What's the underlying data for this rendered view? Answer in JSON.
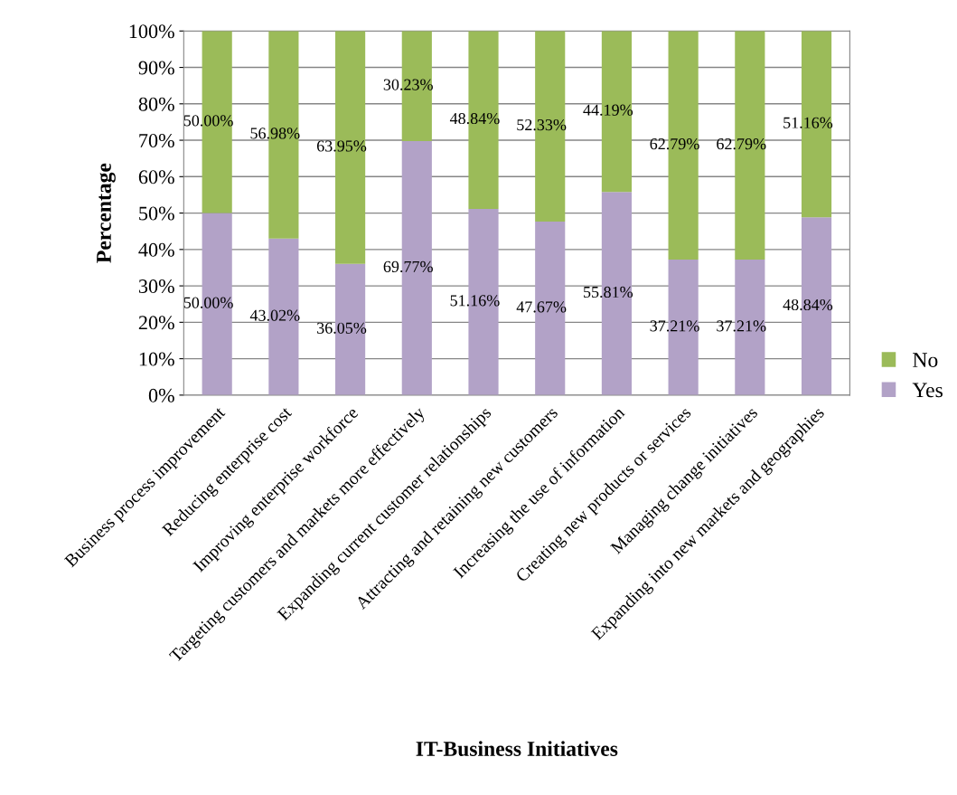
{
  "chart_data": {
    "type": "bar",
    "stacked": true,
    "xlabel": "IT-Business Initiatives",
    "ylabel": "Percentage",
    "categories": [
      "Business process improvement",
      "Reducing enterprise cost",
      "Improving enterprise workforce",
      "Targeting customers and markets more effectively",
      "Expanding current customer relationships",
      "Attracting and retaining new customers",
      "Increasing the use of information",
      "Creating new products or services",
      "Managing change initiatives",
      "Expanding into new markets and geographies"
    ],
    "series": [
      {
        "name": "Yes",
        "color": "#b2a2c7",
        "values": [
          50.0,
          43.02,
          36.05,
          69.77,
          51.16,
          47.67,
          55.81,
          37.21,
          37.21,
          48.84
        ],
        "value_labels": [
          "50.00%",
          "43.02%",
          "36.05%",
          "69.77%",
          "51.16%",
          "47.67%",
          "55.81%",
          "37.21%",
          "37.21%",
          "48.84%"
        ]
      },
      {
        "name": "No",
        "color": "#9bbb59",
        "values": [
          50.0,
          56.98,
          63.95,
          30.23,
          48.84,
          52.33,
          44.19,
          62.79,
          62.79,
          51.16
        ],
        "value_labels": [
          "50.00%",
          "56.98%",
          "63.95%",
          "30.23%",
          "48.84%",
          "52.33%",
          "44.19%",
          "62.79%",
          "62.79%",
          "51.16%"
        ]
      }
    ],
    "ylim": [
      0,
      100
    ],
    "yticks": [
      {
        "value": 0,
        "label": "0%"
      },
      {
        "value": 10,
        "label": "10%"
      },
      {
        "value": 20,
        "label": "20%"
      },
      {
        "value": 30,
        "label": "30%"
      },
      {
        "value": 40,
        "label": "40%"
      },
      {
        "value": 50,
        "label": "50%"
      },
      {
        "value": 60,
        "label": "60%"
      },
      {
        "value": 70,
        "label": "70%"
      },
      {
        "value": 80,
        "label": "80%"
      },
      {
        "value": 90,
        "label": "90%"
      },
      {
        "value": 100,
        "label": "100%"
      }
    ],
    "grid": "y",
    "legend": "right"
  }
}
